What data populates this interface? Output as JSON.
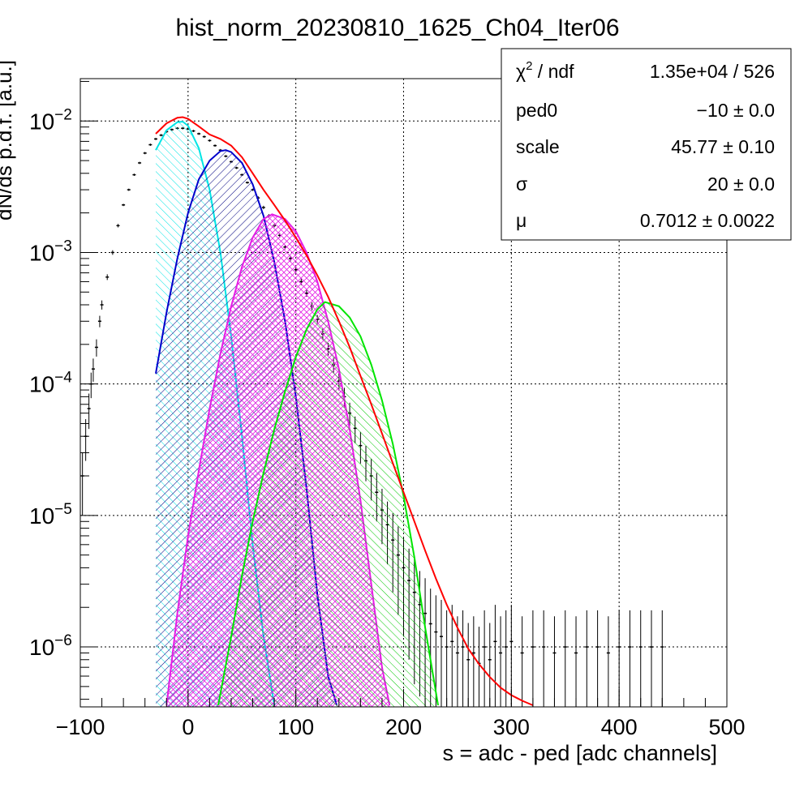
{
  "chart_data": {
    "type": "line",
    "title": "hist_norm_20230810_1625_Ch04_Iter06",
    "xlabel": "s = adc - ped [adc channels]",
    "ylabel": "dN/ds p.d.f. [a.u.]",
    "xlim": [
      -100,
      500
    ],
    "ylim": [
      3.5e-07,
      0.021
    ],
    "yscale": "log",
    "grid": true,
    "x_ticks": [
      -100,
      0,
      100,
      200,
      300,
      400,
      500
    ],
    "x_tick_labels": [
      "−100",
      "0",
      "100",
      "200",
      "300",
      "400",
      "500"
    ],
    "y_ticks": [
      {
        "value": 0.01,
        "mantissa": "10",
        "exponent": "−2"
      },
      {
        "value": 0.001,
        "mantissa": "10",
        "exponent": "−3"
      },
      {
        "value": 0.0001,
        "mantissa": "10",
        "exponent": "−4"
      },
      {
        "value": 1e-05,
        "mantissa": "10",
        "exponent": "−5"
      },
      {
        "value": 1e-06,
        "mantissa": "10",
        "exponent": "−6"
      }
    ],
    "stats_box": {
      "position": "top-right",
      "rows": [
        {
          "label": "χ",
          "label_sup": "2",
          "label_tail": " / ndf",
          "value": "1.35e+04 / 526"
        },
        {
          "label": "ped0",
          "label_sup": "",
          "label_tail": "",
          "value": "−10 ± 0.0"
        },
        {
          "label": "scale",
          "label_sup": "",
          "label_tail": "",
          "value": "45.77 ± 0.10"
        },
        {
          "label": "σ",
          "label_sup": "",
          "label_tail": "",
          "value": "20 ± 0.0"
        },
        {
          "label": "μ",
          "label_sup": "",
          "label_tail": "",
          "value": "0.7012 ± 0.0022"
        }
      ]
    },
    "histogram": {
      "color": "#000000",
      "x": [
        -98,
        -95,
        -92,
        -90,
        -88,
        -85,
        -82,
        -80,
        -75,
        -70,
        -65,
        -60,
        -55,
        -50,
        -45,
        -40,
        -35,
        -30,
        -25,
        -20,
        -15,
        -10,
        -5,
        0,
        5,
        10,
        15,
        20,
        25,
        30,
        35,
        40,
        45,
        50,
        55,
        60,
        65,
        70,
        75,
        80,
        85,
        90,
        95,
        100,
        105,
        110,
        115,
        120,
        125,
        130,
        135,
        140,
        145,
        150,
        155,
        160,
        165,
        170,
        175,
        180,
        185,
        190,
        195,
        200,
        205,
        210,
        215,
        220,
        225,
        230,
        235,
        240,
        245,
        250,
        255,
        260,
        265,
        270,
        275,
        280,
        285,
        290,
        295,
        300,
        310,
        320,
        330,
        340,
        350,
        360,
        370,
        380,
        390,
        400,
        410,
        420,
        430,
        440
      ],
      "y": [
        2e-05,
        4e-05,
        6.5e-05,
        0.0001,
        0.00013,
        0.00019,
        0.0003,
        0.0004,
        0.00065,
        0.001,
        0.0016,
        0.0023,
        0.003,
        0.0039,
        0.0048,
        0.0057,
        0.0066,
        0.0073,
        0.0078,
        0.0083,
        0.0086,
        0.0088,
        0.0088,
        0.0087,
        0.0084,
        0.008,
        0.0076,
        0.0071,
        0.0065,
        0.006,
        0.0054,
        0.0049,
        0.0044,
        0.0039,
        0.0034,
        0.003,
        0.0026,
        0.0022,
        0.0019,
        0.0016,
        0.00135,
        0.0011,
        0.0009,
        0.00074,
        0.0006,
        0.00049,
        0.00039,
        0.00031,
        0.00024,
        0.000185,
        0.00014,
        0.000105,
        8e-05,
        6e-05,
        4.6e-05,
        3.4e-05,
        2.6e-05,
        2e-05,
        1.5e-05,
        1.1e-05,
        8.5e-06,
        6.5e-06,
        5e-06,
        4e-06,
        3.2e-06,
        2.6e-06,
        2.1e-06,
        1.8e-06,
        1.5e-06,
        1.3e-06,
        1.2e-06,
        1e-06,
        1.1e-06,
        9e-07,
        1e-06,
        8e-07,
        9e-07,
        7.5e-07,
        1e-06,
        8e-07,
        1.1e-06,
        9e-07,
        1e-06,
        1.1e-06,
        9e-07,
        1e-06,
        1e-06,
        9e-07,
        1e-06,
        9e-07,
        1e-06,
        1e-06,
        9e-07,
        1e-06,
        1e-06,
        1e-06,
        1e-06,
        1e-06
      ],
      "err_frac": [
        0.5,
        0.35,
        0.3,
        0.22,
        0.2,
        0.15,
        0.1,
        0.08,
        0.05,
        0.04,
        0.03,
        0.02,
        0.02,
        0.02,
        0.02,
        0.02,
        0.02,
        0.02,
        0.02,
        0.02,
        0.02,
        0.02,
        0.02,
        0.02,
        0.02,
        0.02,
        0.02,
        0.02,
        0.02,
        0.02,
        0.02,
        0.02,
        0.02,
        0.02,
        0.02,
        0.02,
        0.03,
        0.03,
        0.03,
        0.03,
        0.04,
        0.04,
        0.05,
        0.05,
        0.06,
        0.06,
        0.07,
        0.08,
        0.1,
        0.11,
        0.13,
        0.15,
        0.17,
        0.2,
        0.23,
        0.27,
        0.3,
        0.35,
        0.4,
        0.45,
        0.5,
        0.6,
        0.65,
        0.7,
        0.75,
        0.8,
        0.8,
        0.85,
        0.85,
        0.9,
        0.9,
        0.9,
        0.9,
        0.9,
        0.9,
        0.9,
        0.9,
        0.9,
        0.9,
        0.9,
        0.9,
        0.9,
        0.9,
        0.9,
        0.9,
        0.9,
        0.9,
        0.9,
        0.9,
        0.9,
        0.9,
        0.9,
        0.9,
        0.9,
        0.9,
        0.9,
        0.9,
        0.9
      ]
    },
    "series": [
      {
        "color": "#00e5e5",
        "hatch": "cyan-hatch",
        "x": [
          -30,
          -20,
          -10,
          -5,
          0,
          10,
          20,
          30,
          40,
          50,
          60,
          70,
          80
        ],
        "y": [
          0.006,
          0.0085,
          0.0098,
          0.0099,
          0.0092,
          0.0062,
          0.003,
          0.001,
          0.00023,
          4e-05,
          6e-06,
          1.2e-06,
          3.6e-07
        ]
      },
      {
        "color": "#0000cc",
        "hatch": "blue-hatch",
        "x": [
          -30,
          -20,
          -10,
          0,
          10,
          20,
          30,
          35,
          40,
          50,
          60,
          70,
          80,
          90,
          100,
          110,
          120,
          130,
          138
        ],
        "y": [
          0.00012,
          0.00035,
          0.0009,
          0.002,
          0.0036,
          0.005,
          0.0059,
          0.006,
          0.0058,
          0.0048,
          0.0033,
          0.0019,
          0.00085,
          0.0003,
          8e-05,
          1.6e-05,
          2.5e-06,
          6e-07,
          3.6e-07
        ]
      },
      {
        "color": "#e51ee5",
        "hatch": "magenta-hatch",
        "x": [
          -20,
          -10,
          0,
          10,
          20,
          30,
          40,
          50,
          60,
          70,
          78,
          90,
          100,
          110,
          120,
          130,
          140,
          150,
          160,
          170,
          180,
          187
        ],
        "y": [
          3.6e-07,
          1.8e-06,
          7e-06,
          2.2e-05,
          6.5e-05,
          0.00017,
          0.00039,
          0.00078,
          0.0013,
          0.0018,
          0.00195,
          0.0018,
          0.00145,
          0.001,
          0.0006,
          0.0003,
          0.00013,
          4.5e-05,
          1.3e-05,
          3e-06,
          7e-07,
          3.6e-07
        ]
      },
      {
        "color": "#00e500",
        "hatch": "green-hatch",
        "x": [
          28,
          40,
          50,
          60,
          70,
          80,
          90,
          100,
          110,
          120,
          127,
          140,
          150,
          160,
          170,
          180,
          190,
          200,
          210,
          220,
          232
        ],
        "y": [
          3.6e-07,
          1.2e-06,
          3.5e-06,
          9e-06,
          2.1e-05,
          4.5e-05,
          8.8e-05,
          0.00016,
          0.00026,
          0.00037,
          0.00042,
          0.00039,
          0.00032,
          0.00023,
          0.00014,
          7.5e-05,
          3.5e-05,
          1.4e-05,
          4.8e-06,
          1.4e-06,
          3.6e-07
        ]
      },
      {
        "color": "#ff0000",
        "hatch": "",
        "x": [
          -30,
          -20,
          -10,
          -5,
          0,
          10,
          20,
          30,
          40,
          50,
          60,
          70,
          80,
          90,
          100,
          110,
          120,
          130,
          140,
          150,
          160,
          170,
          180,
          190,
          200,
          210,
          220,
          230,
          240,
          250,
          260,
          270,
          280,
          290,
          300,
          310,
          320
        ],
        "y": [
          0.008,
          0.0096,
          0.0106,
          0.0107,
          0.0104,
          0.0091,
          0.0079,
          0.0073,
          0.0065,
          0.0053,
          0.004,
          0.003,
          0.0023,
          0.00175,
          0.0013,
          0.00095,
          0.00067,
          0.00046,
          0.0003,
          0.00019,
          0.000115,
          7e-05,
          4.2e-05,
          2.5e-05,
          1.5e-05,
          9e-06,
          5.4e-06,
          3.3e-06,
          2.1e-06,
          1.4e-06,
          9.7e-07,
          7.4e-07,
          5.9e-07,
          4.9e-07,
          4.3e-07,
          3.9e-07,
          3.6e-07
        ]
      }
    ]
  }
}
